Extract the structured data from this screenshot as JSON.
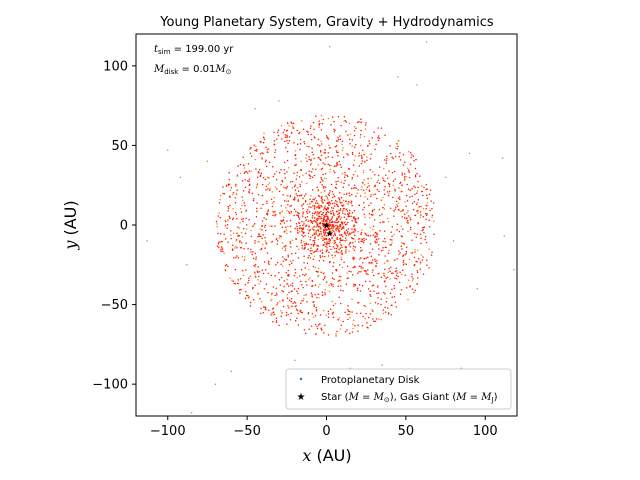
{
  "chart_data": {
    "type": "scatter",
    "title": "Young Planetary System, Gravity + Hydrodynamics",
    "xlabel": "x",
    "xlabel_unit": " (AU)",
    "ylabel": "y",
    "ylabel_unit": " (AU)",
    "xlim": [
      -120,
      120
    ],
    "ylim": [
      -120,
      120
    ],
    "xticks": [
      -100,
      -50,
      0,
      50,
      100
    ],
    "yticks": [
      -100,
      -50,
      0,
      50,
      100
    ],
    "grid": false,
    "annotations": [
      "t_sim = 199.00 yr",
      "M_disk = 0.01 M_⊙"
    ],
    "legend_placement": "lower-right",
    "disk": {
      "name": "Protoplanetary Disk",
      "color": "#1f77b4",
      "inner_color": "#ff1a00",
      "outer_color": "#ff7f0e",
      "approx_point_count": 2000,
      "outer_radius": 70
    },
    "bodies": {
      "name": "Star (M = M_⊙), Gas Giant (M = M_J)",
      "color": "#000000",
      "points": [
        {
          "label": "star",
          "x": 0,
          "y": 0
        },
        {
          "label": "gas giant",
          "x": 2,
          "y": -5
        }
      ]
    },
    "outliers": [
      [
        2,
        112
      ],
      [
        -100,
        47
      ],
      [
        90,
        45
      ],
      [
        111,
        42
      ],
      [
        -113,
        -10
      ],
      [
        112,
        -7
      ],
      [
        95,
        -40
      ],
      [
        118,
        -28
      ],
      [
        -70,
        -100
      ],
      [
        -85,
        -118
      ],
      [
        -60,
        -92
      ],
      [
        35,
        -88
      ],
      [
        85,
        -90
      ],
      [
        45,
        93
      ],
      [
        57,
        88
      ],
      [
        -45,
        73
      ],
      [
        -30,
        78
      ],
      [
        63,
        115
      ],
      [
        -92,
        30
      ],
      [
        -88,
        -25
      ],
      [
        75,
        30
      ],
      [
        80,
        -10
      ],
      [
        -75,
        40
      ],
      [
        15,
        -90
      ],
      [
        -20,
        -85
      ]
    ]
  },
  "legend": {
    "disk_label": "Protoplanetary Disk",
    "bodies_label_parts": [
      "Star (",
      "M",
      " = ",
      "M",
      "⊙",
      "), Gas Giant (",
      "M",
      " = ",
      "M",
      "J",
      ")"
    ]
  },
  "annotation_text": {
    "tsim_sym": "t",
    "tsim_sub": "sim",
    "tsim_value": " = 199.00 yr",
    "mdisk_sym": "M",
    "mdisk_sub": "disk",
    "mdisk_eq": " = 0.01",
    "mdisk_unit": "M",
    "mdisk_unit_sub": "⊙"
  }
}
